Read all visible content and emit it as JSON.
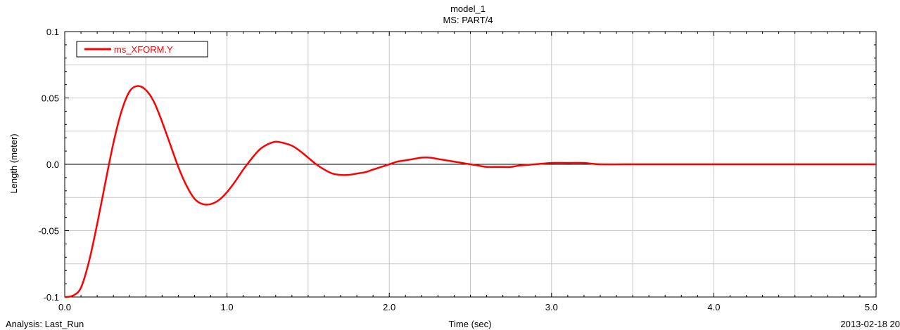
{
  "chart_data": {
    "type": "line",
    "title": "model_1",
    "subtitle": "MS: PART/4",
    "xlabel": "Time (sec)",
    "ylabel": "Length (meter)",
    "xlim": [
      0.0,
      5.0
    ],
    "ylim": [
      -0.1,
      0.1
    ],
    "x_major_ticks": [
      0.0,
      1.0,
      2.0,
      3.0,
      4.0,
      5.0
    ],
    "x_major_tick_labels": [
      "0.0",
      "1.0",
      "2.0",
      "3.0",
      "4.0",
      "5.0"
    ],
    "y_major_ticks": [
      -0.1,
      -0.05,
      0.0,
      0.05,
      0.1
    ],
    "y_major_tick_labels": [
      "-0.1",
      "-0.05",
      "0.0",
      "0.05",
      "0.1"
    ],
    "grid": true,
    "legend_position": "top-left",
    "series": [
      {
        "name": "ms_XFORM.Y",
        "color": "#ff0000",
        "points": [
          [
            0.0,
            -0.1
          ],
          [
            0.05,
            -0.099
          ],
          [
            0.1,
            -0.093
          ],
          [
            0.15,
            -0.073
          ],
          [
            0.2,
            -0.045
          ],
          [
            0.25,
            -0.014
          ],
          [
            0.3,
            0.016
          ],
          [
            0.35,
            0.04
          ],
          [
            0.4,
            0.055
          ],
          [
            0.45,
            0.059
          ],
          [
            0.5,
            0.056
          ],
          [
            0.55,
            0.047
          ],
          [
            0.6,
            0.032
          ],
          [
            0.65,
            0.015
          ],
          [
            0.7,
            -0.002
          ],
          [
            0.75,
            -0.016
          ],
          [
            0.8,
            -0.026
          ],
          [
            0.85,
            -0.03
          ],
          [
            0.9,
            -0.03
          ],
          [
            0.95,
            -0.027
          ],
          [
            1.0,
            -0.021
          ],
          [
            1.05,
            -0.013
          ],
          [
            1.1,
            -0.004
          ],
          [
            1.15,
            0.004
          ],
          [
            1.2,
            0.011
          ],
          [
            1.25,
            0.015
          ],
          [
            1.3,
            0.017
          ],
          [
            1.35,
            0.016
          ],
          [
            1.4,
            0.014
          ],
          [
            1.45,
            0.01
          ],
          [
            1.5,
            0.005
          ],
          [
            1.55,
            0.0
          ],
          [
            1.6,
            -0.004
          ],
          [
            1.65,
            -0.007
          ],
          [
            1.7,
            -0.008
          ],
          [
            1.75,
            -0.008
          ],
          [
            1.8,
            -0.007
          ],
          [
            1.85,
            -0.006
          ],
          [
            1.9,
            -0.004
          ],
          [
            1.95,
            -0.002
          ],
          [
            2.0,
            0.0
          ],
          [
            2.05,
            0.002
          ],
          [
            2.1,
            0.003
          ],
          [
            2.15,
            0.004
          ],
          [
            2.2,
            0.005
          ],
          [
            2.25,
            0.005
          ],
          [
            2.3,
            0.004
          ],
          [
            2.35,
            0.003
          ],
          [
            2.4,
            0.002
          ],
          [
            2.45,
            0.001
          ],
          [
            2.5,
            0.0
          ],
          [
            2.55,
            -0.001
          ],
          [
            2.6,
            -0.002
          ],
          [
            2.65,
            -0.002
          ],
          [
            2.7,
            -0.002
          ],
          [
            2.75,
            -0.002
          ],
          [
            2.8,
            -0.001
          ],
          [
            2.9,
            0.0
          ],
          [
            3.0,
            0.001
          ],
          [
            3.1,
            0.001
          ],
          [
            3.2,
            0.001
          ],
          [
            3.3,
            0.0
          ],
          [
            3.5,
            0.0
          ],
          [
            4.0,
            0.0
          ],
          [
            4.5,
            0.0
          ],
          [
            5.0,
            0.0
          ]
        ]
      }
    ]
  },
  "footer": {
    "analysis": "Analysis:  Last_Run",
    "date": "2013-02-18 20"
  }
}
